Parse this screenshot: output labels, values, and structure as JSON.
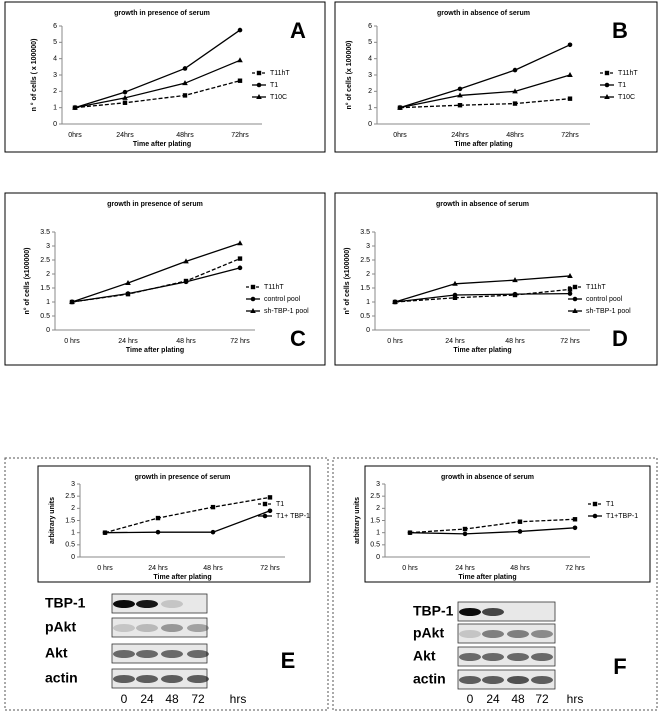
{
  "chart_data": [
    {
      "type": "line",
      "panel": "A",
      "title": "growth in presence of serum",
      "x_label": "Time after plating",
      "y_label": "n ° of cells ( x 100000)",
      "categories": [
        "0hrs",
        "24hrs",
        "48hrs",
        "72hrs"
      ],
      "ylim": [
        0,
        6
      ],
      "yticks": [
        0,
        1,
        2,
        3,
        4,
        5,
        6
      ],
      "series": [
        {
          "name": "T11hT",
          "color": "#000000",
          "marker": "square",
          "dashed": true,
          "values": [
            1,
            1.3,
            1.75,
            2.65
          ]
        },
        {
          "name": "T1",
          "color": "#000000",
          "marker": "circle",
          "dashed": false,
          "values": [
            1,
            1.95,
            3.4,
            5.75
          ]
        },
        {
          "name": "T10C",
          "color": "#000000",
          "marker": "triangle",
          "dashed": false,
          "values": [
            1,
            1.6,
            2.5,
            3.9
          ]
        }
      ]
    },
    {
      "type": "line",
      "panel": "B",
      "title": "growth in absence of serum",
      "x_label": "Time after plating",
      "y_label": "n° of cells (x 100000)",
      "categories": [
        "0hrs",
        "24hrs",
        "48hrs",
        "72hrs"
      ],
      "ylim": [
        0,
        6
      ],
      "yticks": [
        0,
        1,
        2,
        3,
        4,
        5,
        6
      ],
      "series": [
        {
          "name": "T11hT",
          "color": "#000000",
          "marker": "square",
          "dashed": true,
          "values": [
            1,
            1.15,
            1.25,
            1.55
          ]
        },
        {
          "name": "T1",
          "color": "#000000",
          "marker": "circle",
          "dashed": false,
          "values": [
            1,
            2.15,
            3.3,
            4.85
          ]
        },
        {
          "name": "T10C",
          "color": "#000000",
          "marker": "triangle",
          "dashed": false,
          "values": [
            1,
            1.75,
            2.0,
            3.0
          ]
        }
      ]
    },
    {
      "type": "line",
      "panel": "C",
      "title": "growth in presence of serum",
      "x_label": "Time after plating",
      "y_label": "n° of cells (x100000)",
      "categories": [
        "0 hrs",
        "24 hrs",
        "48 hrs",
        "72 hrs"
      ],
      "ylim": [
        0,
        3.5
      ],
      "yticks": [
        0,
        0.5,
        1,
        1.5,
        2,
        2.5,
        3,
        3.5
      ],
      "series": [
        {
          "name": "T11hT",
          "color": "#000000",
          "marker": "square",
          "dashed": true,
          "values": [
            1,
            1.28,
            1.75,
            2.55
          ]
        },
        {
          "name": "control pool",
          "color": "#000000",
          "marker": "circle",
          "dashed": false,
          "values": [
            1,
            1.3,
            1.72,
            2.22
          ]
        },
        {
          "name": "sh-TBP-1 pool",
          "color": "#000000",
          "marker": "triangle",
          "dashed": false,
          "values": [
            1,
            1.68,
            2.45,
            3.1
          ]
        }
      ]
    },
    {
      "type": "line",
      "panel": "D",
      "title": "growth in absence of serum",
      "x_label": "Time after plating",
      "y_label": "n° of cells (x100000)",
      "categories": [
        "0 hrs",
        "24 hrs",
        "48 hrs",
        "72 hrs"
      ],
      "ylim": [
        0,
        3.5
      ],
      "yticks": [
        0,
        0.5,
        1,
        1.5,
        2,
        2.5,
        3,
        3.5
      ],
      "series": [
        {
          "name": "T11hT",
          "color": "#000000",
          "marker": "square",
          "dashed": true,
          "values": [
            1,
            1.15,
            1.25,
            1.45
          ]
        },
        {
          "name": "control pool",
          "color": "#000000",
          "marker": "circle",
          "dashed": false,
          "values": [
            1,
            1.25,
            1.28,
            1.3
          ]
        },
        {
          "name": "sh-TBP-1 pool",
          "color": "#000000",
          "marker": "triangle",
          "dashed": false,
          "values": [
            1,
            1.65,
            1.78,
            1.93
          ]
        }
      ]
    },
    {
      "type": "line",
      "title": "growth in presence of serum",
      "x_label": "Time after plating",
      "y_label": "arbitrary units",
      "categories": [
        "0 hrs",
        "24 hrs",
        "48 hrs",
        "72 hrs"
      ],
      "ylim": [
        0,
        3
      ],
      "yticks": [
        0,
        0.5,
        1,
        1.5,
        2,
        2.5,
        3
      ],
      "series": [
        {
          "name": "T1",
          "color": "#000000",
          "marker": "square",
          "dashed": true,
          "values": [
            1,
            1.6,
            2.05,
            2.45
          ]
        },
        {
          "name": "T1+ TBP-1",
          "color": "#000000",
          "marker": "circle",
          "dashed": false,
          "values": [
            1,
            1.02,
            1.02,
            1.9
          ]
        }
      ]
    },
    {
      "type": "line",
      "title": "growth in absence of serum",
      "x_label": "Time after plating",
      "y_label": "arbitrary units",
      "categories": [
        "0 hrs",
        "24 hrs",
        "48 hrs",
        "72 hrs"
      ],
      "ylim": [
        0,
        3
      ],
      "yticks": [
        0,
        0.5,
        1,
        1.5,
        2,
        2.5,
        3
      ],
      "series": [
        {
          "name": "T1",
          "color": "#000000",
          "marker": "square",
          "dashed": true,
          "values": [
            1,
            1.15,
            1.45,
            1.55
          ]
        },
        {
          "name": "T1+TBP-1",
          "color": "#000000",
          "marker": "circle",
          "dashed": false,
          "values": [
            1,
            0.95,
            1.05,
            1.2
          ]
        }
      ]
    }
  ],
  "blots": [
    {
      "panel": "E",
      "rows": [
        "TBP-1",
        "pAkt",
        "Akt",
        "actin"
      ],
      "lanes": [
        "0",
        "24",
        "48",
        "72"
      ],
      "unit": "hrs"
    },
    {
      "panel": "F",
      "rows": [
        "TBP-1",
        "pAkt",
        "Akt",
        "actin"
      ],
      "lanes": [
        "0",
        "24",
        "48",
        "72"
      ],
      "unit": "hrs"
    }
  ]
}
